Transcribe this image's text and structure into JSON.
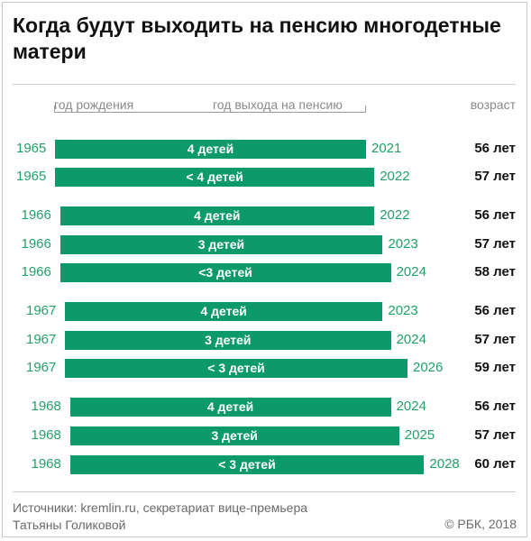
{
  "chart_data": {
    "type": "bar",
    "title": "Когда будут выходить на пенсию многодетные матери",
    "column_headers": {
      "birth": "год рождения",
      "retirement": "год выхода на пенсию",
      "age": "возраст"
    },
    "rows": [
      {
        "birth": "1965",
        "children": "4 детей",
        "retirement": "2021",
        "age": "56 лет"
      },
      {
        "birth": "1965",
        "children": "< 4 детей",
        "retirement": "2022",
        "age": "57 лет"
      },
      {
        "birth": "1966",
        "children": "4 детей",
        "retirement": "2022",
        "age": "56 лет"
      },
      {
        "birth": "1966",
        "children": "3 детей",
        "retirement": "2023",
        "age": "57 лет"
      },
      {
        "birth": "1966",
        "children": "<3 детей",
        "retirement": "2024",
        "age": "58 лет"
      },
      {
        "birth": "1967",
        "children": "4 детей",
        "retirement": "2023",
        "age": "56 лет"
      },
      {
        "birth": "1967",
        "children": "3 детей",
        "retirement": "2024",
        "age": "57 лет"
      },
      {
        "birth": "1967",
        "children": "< 3 детей",
        "retirement": "2026",
        "age": "59 лет"
      },
      {
        "birth": "1968",
        "children": "4 детей",
        "retirement": "2024",
        "age": "56 лет"
      },
      {
        "birth": "1968",
        "children": "3 детей",
        "retirement": "2025",
        "age": "57 лет"
      },
      {
        "birth": "1968",
        "children": "< 3 детей",
        "retirement": "2028",
        "age": "60 лет"
      }
    ],
    "colors": {
      "bar": "#0d9a6a",
      "year_text": "#22a06b"
    }
  },
  "footer": {
    "source_line1": "Источники: kremlin.ru, секретариат вице-премьера",
    "source_line2": "Татьяны Голиковой",
    "copyright": "© РБК, 2018"
  }
}
